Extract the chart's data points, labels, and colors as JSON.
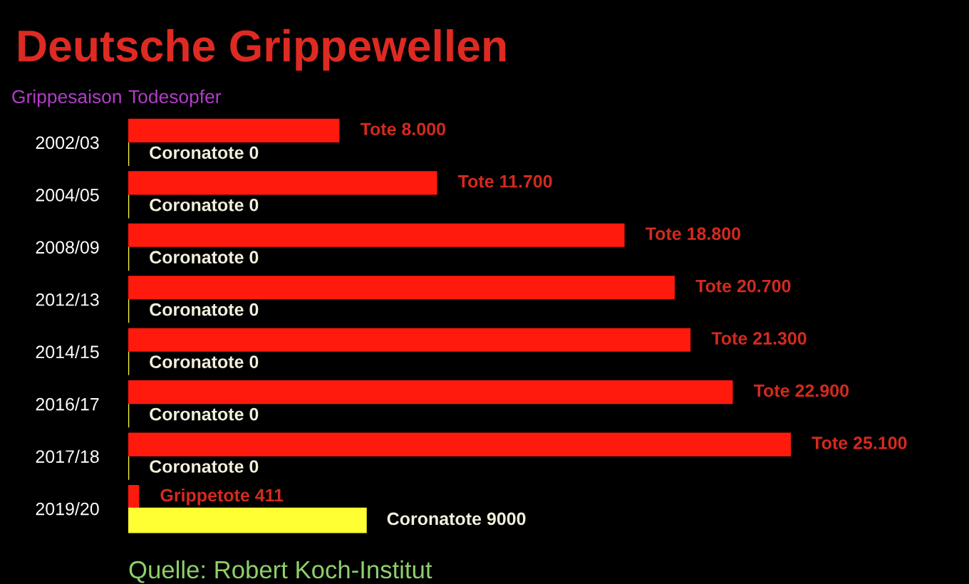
{
  "chart_data": {
    "type": "bar",
    "orientation": "horizontal",
    "title": "Deutsche Grippewellen",
    "xlabel": "Todesopfer",
    "ylabel": "Grippesaison",
    "annotations": [
      "Quelle: Robert Koch-Institut"
    ],
    "categories": [
      "2002/03",
      "2004/05",
      "2008/09",
      "2012/13",
      "2014/15",
      "2016/17",
      "2017/18",
      "2019/20"
    ],
    "series": [
      {
        "color": "#ff1a0d",
        "values": [
          8000,
          11700,
          18800,
          20700,
          21300,
          22900,
          25100,
          411
        ],
        "value_labels": [
          "Tote 8.000",
          "Tote 11.700",
          "Tote 18.800",
          "Tote 20.700",
          "Tote 21.300",
          "Tote 22.900",
          "Tote 25.100",
          "Grippetote 411"
        ]
      },
      {
        "color": "#ffff33",
        "values": [
          0,
          0,
          0,
          0,
          0,
          0,
          0,
          9000
        ],
        "value_labels": [
          "Coronatote 0",
          "Coronatote 0",
          "Coronatote 0",
          "Coronatote 0",
          "Coronatote 0",
          "Coronatote 0",
          "Coronatote 0",
          "Coronatote 9000"
        ]
      }
    ],
    "tick_labels": "y"
  }
}
